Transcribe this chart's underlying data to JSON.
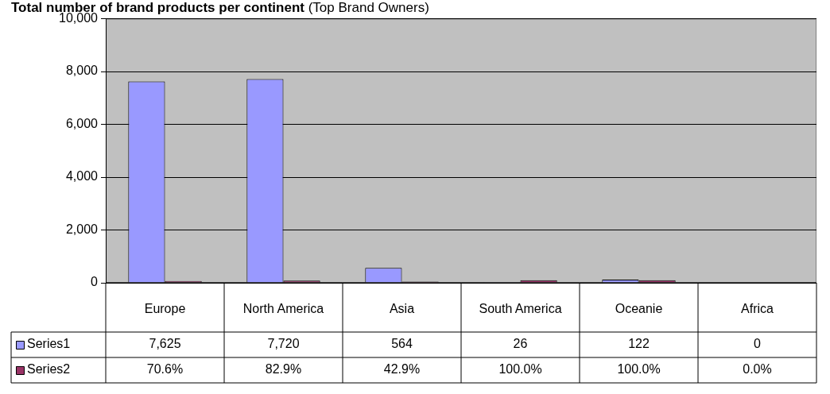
{
  "chart_data": {
    "type": "bar",
    "title": "Total number of brand products per continent",
    "subtitle": "(Top Brand Owners)",
    "categories": [
      "Europe",
      "North America",
      "Asia",
      "South America",
      "Oceanie",
      "Africa"
    ],
    "series": [
      {
        "name": "Series1",
        "color": "#9999ff",
        "values": [
          7625,
          7720,
          564,
          26,
          122,
          0
        ],
        "value_labels": [
          "7,625",
          "7,720",
          "564",
          "26",
          "122",
          "0"
        ]
      },
      {
        "name": "Series2",
        "color": "#993366",
        "values": [
          70.6,
          82.9,
          42.9,
          100,
          100,
          0
        ],
        "value_labels": [
          "70.6%",
          "82.9%",
          "42.9%",
          "100.0%",
          "100.0%",
          "0.0%"
        ]
      }
    ],
    "ylim": [
      0,
      10000
    ],
    "yticks": [
      {
        "value": 0,
        "label": "0"
      },
      {
        "value": 2000,
        "label": "2,000"
      },
      {
        "value": 4000,
        "label": "4,000"
      },
      {
        "value": 6000,
        "label": "6,000"
      },
      {
        "value": 8000,
        "label": "8,000"
      },
      {
        "value": 10000,
        "label": "10,000"
      }
    ],
    "grid": "y",
    "legend": "bottom"
  }
}
